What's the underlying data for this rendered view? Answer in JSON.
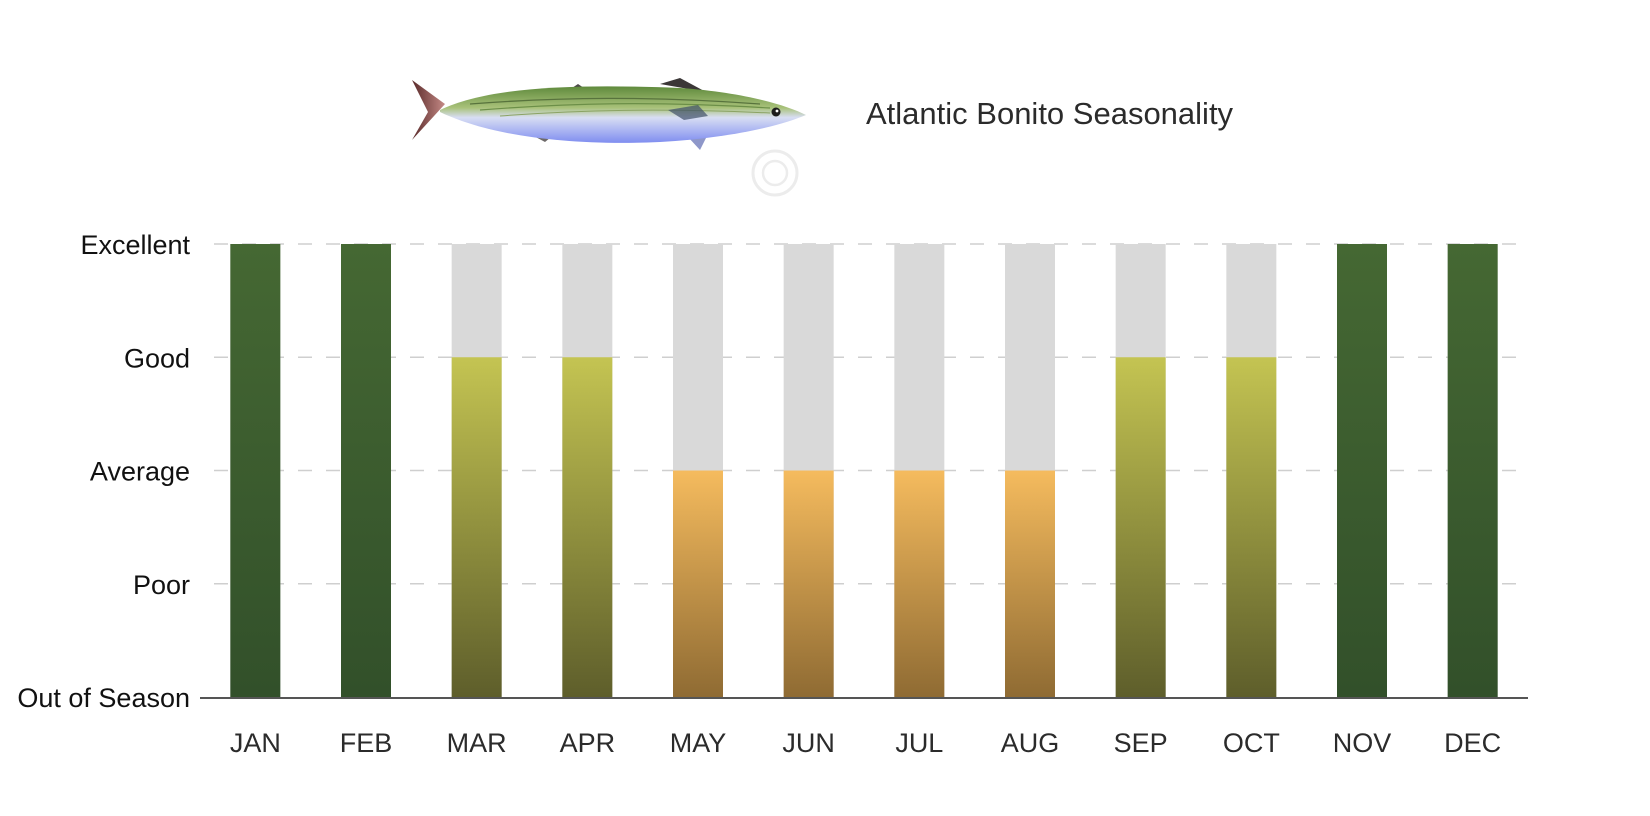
{
  "chart_data": {
    "type": "bar",
    "title": "Atlantic Bonito Seasonality",
    "xlabel": "",
    "ylabel": "",
    "categories": [
      "JAN",
      "FEB",
      "MAR",
      "APR",
      "MAY",
      "JUN",
      "JUL",
      "AUG",
      "SEP",
      "OCT",
      "NOV",
      "DEC"
    ],
    "values": [
      4,
      4,
      3,
      3,
      2,
      2,
      2,
      2,
      3,
      3,
      4,
      4
    ],
    "ylim": [
      0,
      4
    ],
    "y_tick_labels": [
      "Out of Season",
      "Poor",
      "Average",
      "Good",
      "Excellent"
    ],
    "grid": true,
    "grid_style": "dashed",
    "legend": "none",
    "background_bar_value": 4,
    "colors": {
      "background_bar": "#d9d9d9",
      "grid": "#cfcfcf",
      "axis": "#555555",
      "excellent": [
        "#456833",
        "#32502a"
      ],
      "good": [
        "#c4c452",
        "#5e5e2b"
      ],
      "average": [
        "#f5bb5e",
        "#8f6b33"
      ]
    }
  },
  "logo_icon": "tuna-fish-icon"
}
